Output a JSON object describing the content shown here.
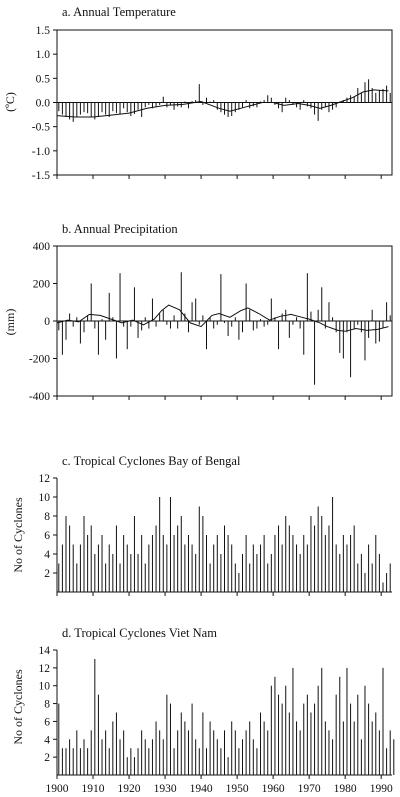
{
  "chart_data": [
    {
      "type": "bar",
      "title": "a. Annual Temperature",
      "ylabel": "(ºC)",
      "xlim": [
        1900,
        1993
      ],
      "ylim": [
        -1.5,
        1.5
      ],
      "yticks": [
        "1.5",
        "1.0",
        "0.5",
        "0.0",
        "-0.5",
        "-1.0",
        "-1.5"
      ],
      "x_start": 1900,
      "values": [
        -0.18,
        -0.25,
        -0.3,
        -0.35,
        -0.4,
        -0.3,
        -0.25,
        -0.2,
        -0.22,
        -0.3,
        -0.35,
        -0.3,
        -0.2,
        -0.25,
        -0.3,
        -0.18,
        -0.22,
        -0.25,
        -0.12,
        -0.2,
        -0.28,
        -0.24,
        -0.15,
        -0.3,
        -0.1,
        -0.05,
        -0.12,
        -0.08,
        -0.05,
        0.12,
        -0.1,
        -0.05,
        -0.15,
        -0.08,
        -0.1,
        0.02,
        -0.12,
        0.03,
        0.05,
        0.38,
        -0.05,
        0.1,
        0.02,
        0.05,
        -0.15,
        -0.2,
        -0.25,
        -0.3,
        -0.28,
        -0.2,
        -0.15,
        -0.1,
        0.05,
        -0.12,
        -0.08,
        -0.1,
        0.02,
        0.05,
        0.15,
        0.1,
        -0.05,
        -0.12,
        -0.2,
        0.1,
        0.05,
        -0.05,
        -0.1,
        -0.15,
        0.05,
        -0.08,
        -0.12,
        -0.25,
        -0.38,
        -0.15,
        -0.1,
        -0.2,
        -0.15,
        -0.1,
        0.02,
        0.05,
        0.1,
        0.15,
        0.12,
        0.3,
        0.2,
        0.42,
        0.48,
        0.3,
        0.2,
        0.25,
        0.28,
        0.35,
        0.2
      ],
      "trend": [
        [
          1900,
          -0.27
        ],
        [
          1905,
          -0.3
        ],
        [
          1910,
          -0.3
        ],
        [
          1915,
          -0.26
        ],
        [
          1920,
          -0.22
        ],
        [
          1925,
          -0.12
        ],
        [
          1930,
          -0.06
        ],
        [
          1935,
          -0.04
        ],
        [
          1940,
          0.02
        ],
        [
          1945,
          -0.12
        ],
        [
          1948,
          -0.18
        ],
        [
          1952,
          -0.1
        ],
        [
          1957,
          0.0
        ],
        [
          1960,
          0.0
        ],
        [
          1963,
          -0.06
        ],
        [
          1967,
          -0.02
        ],
        [
          1970,
          -0.06
        ],
        [
          1973,
          -0.12
        ],
        [
          1976,
          -0.06
        ],
        [
          1979,
          0.02
        ],
        [
          1982,
          0.1
        ],
        [
          1985,
          0.22
        ],
        [
          1988,
          0.26
        ],
        [
          1992,
          0.24
        ]
      ]
    },
    {
      "type": "bar",
      "title": "b. Annual Precipitation",
      "ylabel": "(mm)",
      "xlim": [
        1900,
        1993
      ],
      "ylim": [
        -400,
        400
      ],
      "yticks": [
        "400",
        "200",
        "0",
        "-200",
        "-400"
      ],
      "x_start": 1900,
      "values": [
        -50,
        -180,
        -100,
        40,
        -30,
        20,
        -120,
        -60,
        30,
        200,
        -40,
        -180,
        10,
        -100,
        150,
        20,
        -200,
        255,
        -30,
        -150,
        -30,
        180,
        -90,
        -50,
        20,
        -40,
        120,
        -30,
        40,
        60,
        -20,
        -40,
        30,
        -40,
        260,
        40,
        -60,
        100,
        120,
        -20,
        30,
        -150,
        20,
        -40,
        -20,
        250,
        -10,
        -80,
        -30,
        20,
        -100,
        -60,
        200,
        60,
        -50,
        -40,
        10,
        -30,
        -20,
        120,
        20,
        -150,
        40,
        60,
        -90,
        -20,
        20,
        -40,
        -180,
        255,
        50,
        -340,
        60,
        180,
        -40,
        100,
        20,
        -60,
        -170,
        -200,
        -60,
        -300,
        -40,
        -20,
        -60,
        -210,
        -90,
        60,
        -120,
        -110,
        -40,
        100,
        30
      ],
      "trend": [
        [
          1900,
          -10
        ],
        [
          1903,
          5
        ],
        [
          1906,
          -5
        ],
        [
          1909,
          35
        ],
        [
          1912,
          30
        ],
        [
          1915,
          10
        ],
        [
          1918,
          -10
        ],
        [
          1921,
          5
        ],
        [
          1924,
          -20
        ],
        [
          1927,
          10
        ],
        [
          1929,
          55
        ],
        [
          1931,
          85
        ],
        [
          1934,
          60
        ],
        [
          1937,
          -10
        ],
        [
          1940,
          -30
        ],
        [
          1943,
          30
        ],
        [
          1945,
          40
        ],
        [
          1948,
          20
        ],
        [
          1951,
          55
        ],
        [
          1953,
          70
        ],
        [
          1956,
          40
        ],
        [
          1959,
          5
        ],
        [
          1962,
          25
        ],
        [
          1965,
          35
        ],
        [
          1968,
          20
        ],
        [
          1970,
          10
        ],
        [
          1973,
          -10
        ],
        [
          1975,
          -30
        ],
        [
          1978,
          -50
        ],
        [
          1980,
          -55
        ],
        [
          1983,
          -40
        ],
        [
          1986,
          -50
        ],
        [
          1989,
          -45
        ],
        [
          1992,
          -30
        ]
      ]
    },
    {
      "type": "bar",
      "title": "c. Tropical Cyclones Bay of Bengal",
      "ylabel": "No of Cyclones",
      "xlim": [
        1900,
        1993
      ],
      "ylim": [
        0,
        12
      ],
      "yticks": [
        "12",
        "10",
        "8",
        "6",
        "4",
        "2"
      ],
      "x_start": 1900,
      "values": [
        3,
        5,
        8,
        7,
        5,
        3,
        5,
        8,
        6,
        7,
        4,
        5,
        6,
        3,
        5,
        4,
        7,
        3,
        6,
        5,
        4,
        8,
        4,
        6,
        3,
        5,
        6,
        7,
        10,
        6,
        5,
        10,
        6,
        7,
        8,
        5,
        6,
        5,
        4,
        9,
        8,
        6,
        3,
        5,
        6,
        4,
        7,
        6,
        5,
        3,
        2,
        4,
        6,
        3,
        5,
        4,
        5,
        6,
        3,
        4,
        6,
        7,
        5,
        8,
        7,
        6,
        5,
        4,
        6,
        5,
        8,
        7,
        9,
        8,
        6,
        7,
        10,
        5,
        4,
        6,
        5,
        6,
        7,
        3,
        4,
        2,
        5,
        3,
        6,
        4,
        1,
        2,
        3
      ],
      "x_ticks_shown": false
    },
    {
      "type": "bar",
      "title": "d. Tropical Cyclones Viet Nam",
      "ylabel": "No of Cyclones",
      "xlim": [
        1900,
        1993
      ],
      "ylim": [
        0,
        14
      ],
      "yticks": [
        "14",
        "12",
        "10",
        "8",
        "6",
        "4",
        "2"
      ],
      "xticks": [
        "1900",
        "1910",
        "1920",
        "1930",
        "1940",
        "1950",
        "1960",
        "1970",
        "1980",
        "1990"
      ],
      "x_start": 1900,
      "values": [
        8,
        3,
        3,
        4,
        3,
        5,
        3,
        4,
        3,
        5,
        13,
        9,
        4,
        5,
        3,
        6,
        7,
        4,
        5,
        2,
        3,
        2,
        3,
        5,
        4,
        3,
        4,
        6,
        5,
        4,
        9,
        8,
        3,
        5,
        7,
        6,
        5,
        8,
        4,
        3,
        7,
        3,
        6,
        5,
        4,
        3,
        5,
        2,
        6,
        5,
        3,
        4,
        5,
        6,
        4,
        3,
        7,
        6,
        5,
        10,
        11,
        9,
        8,
        10,
        7,
        12,
        6,
        5,
        8,
        9,
        7,
        8,
        10,
        12,
        6,
        5,
        4,
        9,
        11,
        6,
        12,
        8,
        6,
        9,
        4,
        10,
        8,
        6,
        7,
        5,
        12,
        3,
        5,
        4
      ]
    }
  ]
}
